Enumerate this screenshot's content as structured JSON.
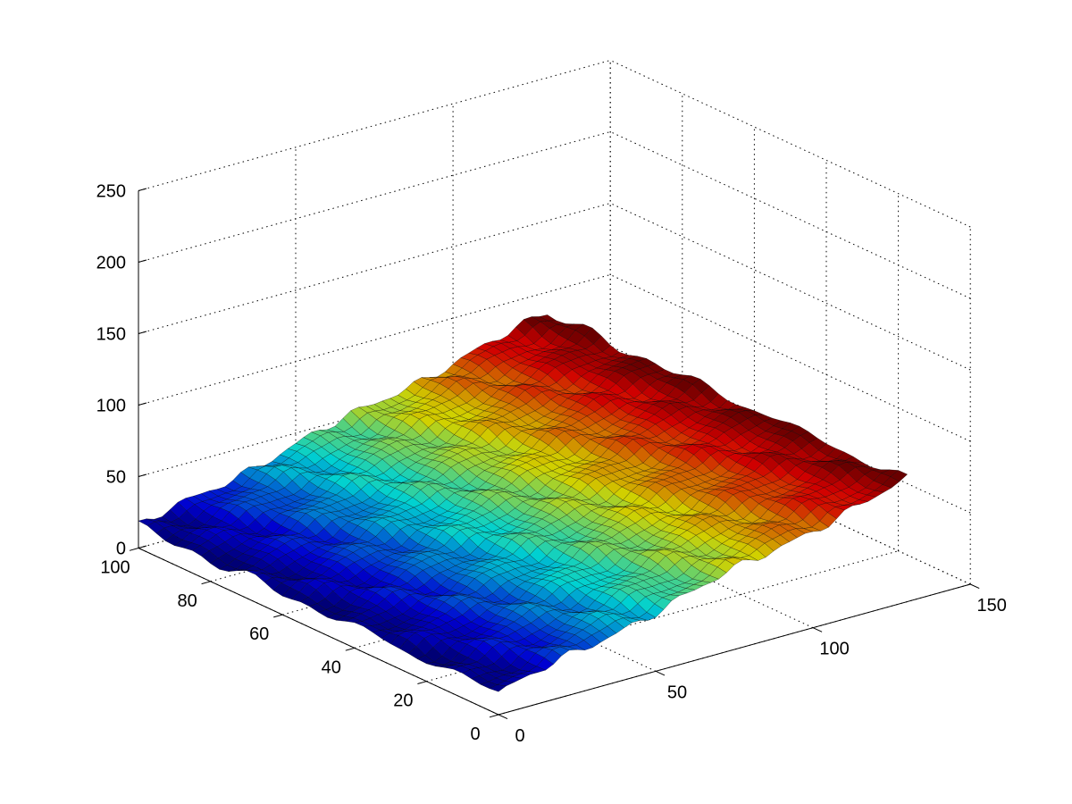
{
  "chart_data": {
    "type": "surface",
    "title": "",
    "xlabel": "",
    "ylabel": "",
    "zlabel": "",
    "grid": true,
    "colormap": "jet",
    "colormap_colors": [
      "#00008f",
      "#0000ff",
      "#0080ff",
      "#00ffff",
      "#80ff80",
      "#ffff00",
      "#ff8000",
      "#ff0000",
      "#800000"
    ],
    "xlim": [
      0,
      150
    ],
    "ylim": [
      0,
      100
    ],
    "zlim": [
      0,
      250
    ],
    "x_ticks": [
      0,
      50,
      100,
      150
    ],
    "y_ticks": [
      0,
      20,
      40,
      60,
      80,
      100
    ],
    "z_ticks": [
      0,
      50,
      100,
      150,
      200,
      250
    ],
    "x_range": [
      0,
      130
    ],
    "y_range": [
      0,
      100
    ],
    "z_range": [
      0,
      95
    ],
    "surface_description_values": {
      "z_at_x0": 15,
      "z_at_x130": 85
    }
  }
}
